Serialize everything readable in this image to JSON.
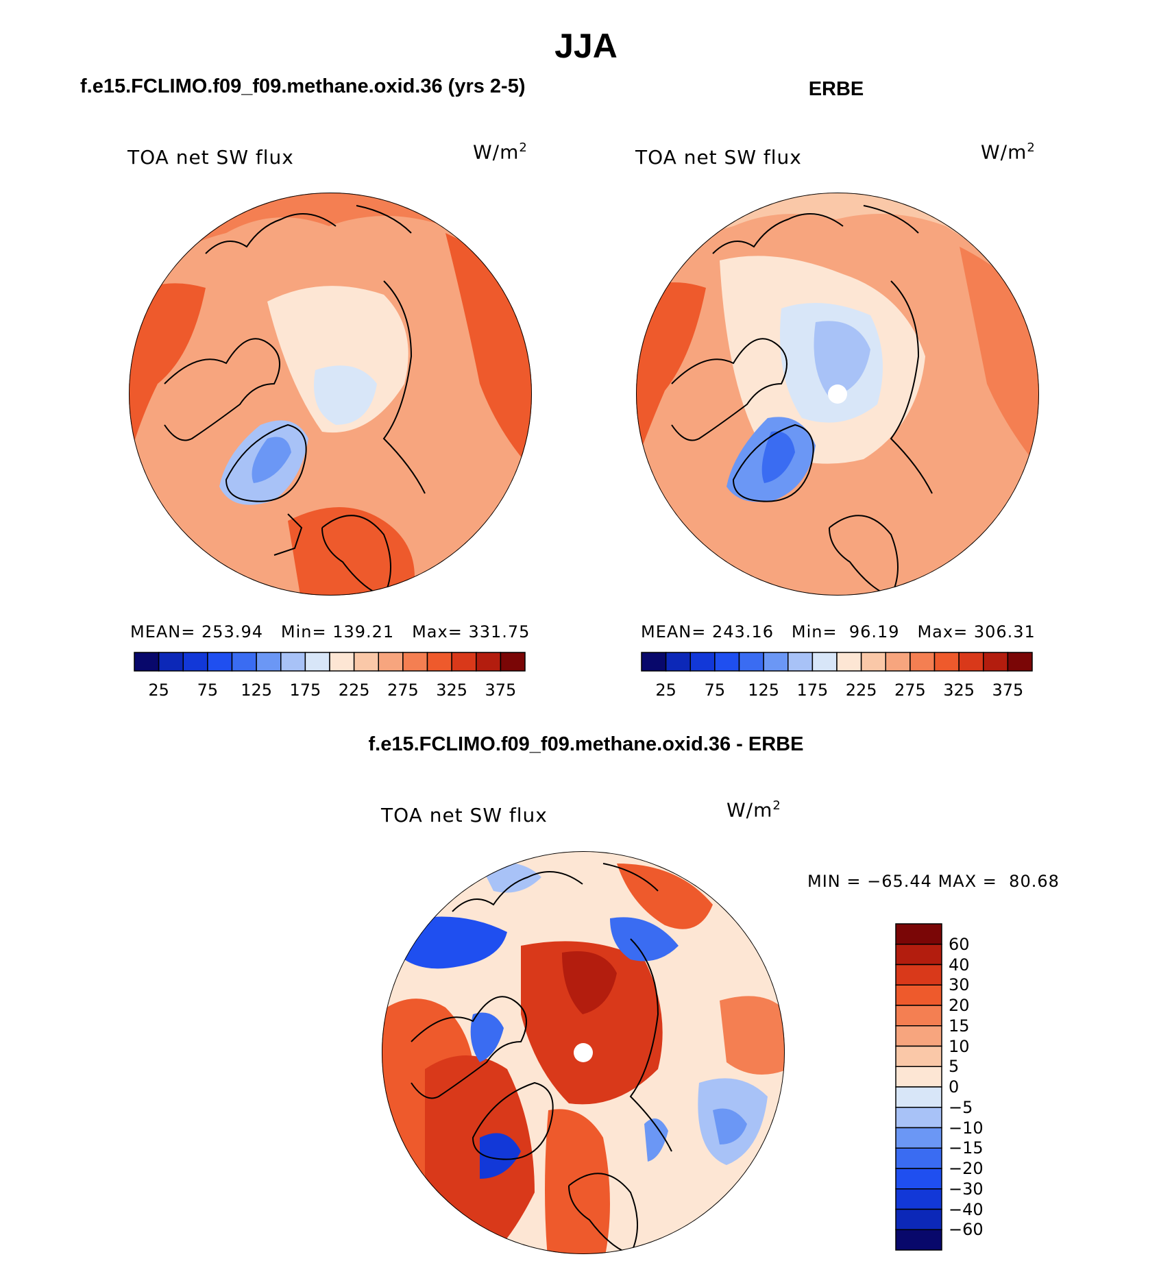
{
  "header": {
    "season": "JJA",
    "left_panel_title": "f.e15.FCLIMO.f09_f09.methane.oxid.36 (yrs 2-5)",
    "right_panel_title": "ERBE",
    "diff_panel_title": "f.e15.FCLIMO.f09_f09.methane.oxid.36 - ERBE"
  },
  "chart_data": [
    {
      "type": "heatmap",
      "projection": "north-polar-stereographic",
      "title": "f.e15.FCLIMO.f09_f09.methane.oxid.36 (yrs 2-5)",
      "variable": "TOA net SW flux",
      "units_base": "W/m",
      "units_exp": "2",
      "stats": {
        "mean_label": "MEAN=",
        "mean": "253.94",
        "min_label": "Min=",
        "min": "139.21",
        "max_label": "Max=",
        "max": "331.75"
      },
      "colorbar": {
        "ticks": [
          "25",
          "75",
          "125",
          "175",
          "225",
          "275",
          "325",
          "375"
        ],
        "colors": [
          "#08086b",
          "#0c28b8",
          "#1238d8",
          "#1f4ff0",
          "#3a6cf2",
          "#6b97f5",
          "#a8c2f7",
          "#d8e6f8",
          "#fde6d4",
          "#fac8a8",
          "#f7a57e",
          "#f47f52",
          "#ee5a2c",
          "#d9391a",
          "#b31d0e",
          "#7a0606"
        ]
      }
    },
    {
      "type": "heatmap",
      "projection": "north-polar-stereographic",
      "title": "ERBE",
      "variable": "TOA net SW flux",
      "units_base": "W/m",
      "units_exp": "2",
      "stats": {
        "mean_label": "MEAN=",
        "mean": "243.16",
        "min_label": "Min=",
        "min": "96.19",
        "max_label": "Max=",
        "max": "306.31"
      },
      "colorbar": {
        "ticks": [
          "25",
          "75",
          "125",
          "175",
          "225",
          "275",
          "325",
          "375"
        ],
        "colors": [
          "#08086b",
          "#0c28b8",
          "#1238d8",
          "#1f4ff0",
          "#3a6cf2",
          "#6b97f5",
          "#a8c2f7",
          "#d8e6f8",
          "#fde6d4",
          "#fac8a8",
          "#f7a57e",
          "#f47f52",
          "#ee5a2c",
          "#d9391a",
          "#b31d0e",
          "#7a0606"
        ]
      }
    },
    {
      "type": "heatmap",
      "projection": "north-polar-stereographic",
      "title": "f.e15.FCLIMO.f09_f09.methane.oxid.36 - ERBE",
      "variable": "TOA net SW flux",
      "units_base": "W/m",
      "units_exp": "2",
      "stats": {
        "min_label": "MIN =",
        "min": "−65.44",
        "max_label": "MAX =",
        "max": "80.68"
      },
      "colorbar": {
        "ticks": [
          "60",
          "40",
          "30",
          "20",
          "15",
          "10",
          "5",
          "0",
          "−5",
          "−10",
          "−15",
          "−20",
          "−30",
          "−40",
          "−60"
        ],
        "colors": [
          "#7a0606",
          "#b31d0e",
          "#d9391a",
          "#ee5a2c",
          "#f47f52",
          "#f7a57e",
          "#fac8a8",
          "#fde6d4",
          "#d8e6f8",
          "#a8c2f7",
          "#6b97f5",
          "#3a6cf2",
          "#1f4ff0",
          "#1238d8",
          "#0c28b8",
          "#08086b"
        ]
      }
    }
  ]
}
